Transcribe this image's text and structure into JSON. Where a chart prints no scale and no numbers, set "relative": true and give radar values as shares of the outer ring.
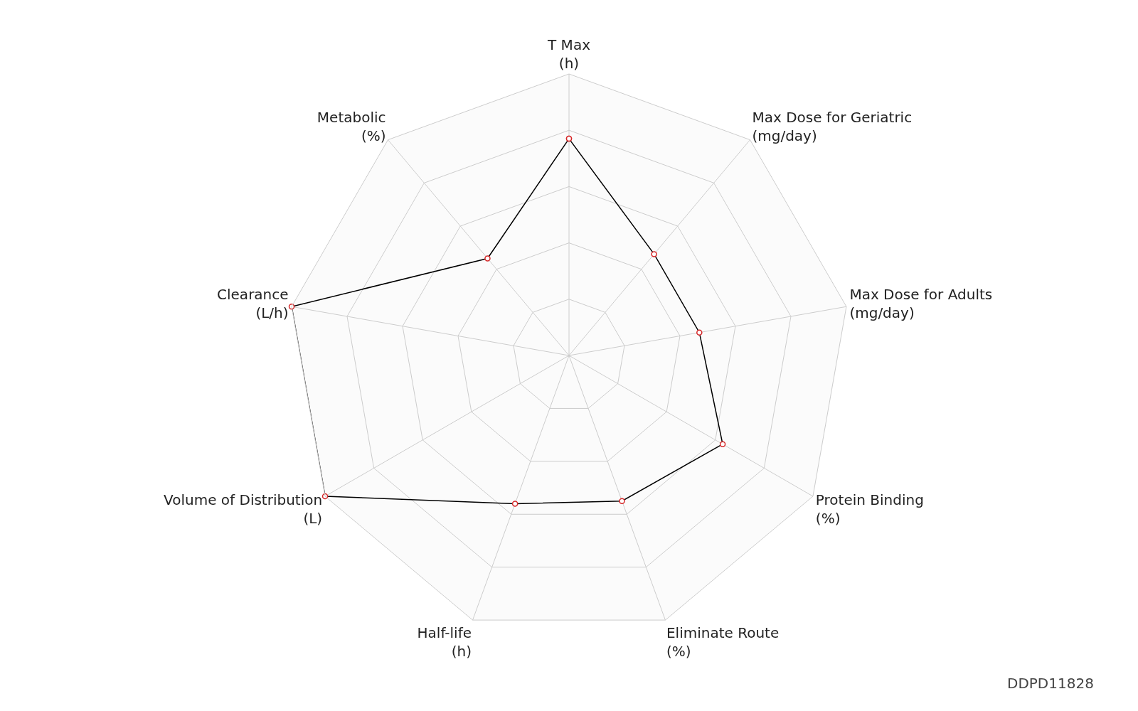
{
  "chart_data": {
    "type": "radar",
    "relative": true,
    "marker": "circle",
    "categories": [
      "T Max\n(h)",
      "Max Dose for Geriatric\n(mg/day)",
      "Max Dose for Adults\n(mg/day)",
      "Protein Binding\n(%)",
      "Eliminate Route\n(%)",
      "Half-life\n(h)",
      "Volume of Distribution\n(L)",
      "Clearance\n(L/h)",
      "Metabolic\n(%)"
    ],
    "series": [
      {
        "color": "#000000",
        "values": [
          0.77,
          0.47,
          0.47,
          0.63,
          0.55,
          0.56,
          1.0,
          1.0,
          0.45
        ]
      }
    ],
    "annotations": [
      "DDPD11828"
    ]
  }
}
